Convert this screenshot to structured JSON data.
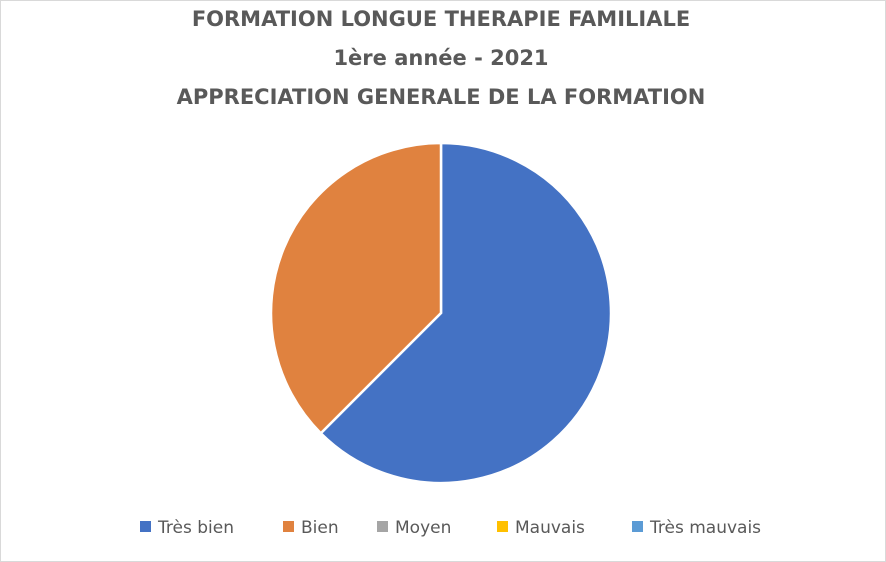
{
  "chart_data": {
    "type": "pie",
    "title": [
      "FORMATION LONGUE THERAPIE FAMILIALE",
      "1ère année - 2021",
      "APPRECIATION GENERALE DE LA FORMATION"
    ],
    "categories": [
      "Très bien",
      "Bien",
      "Moyen",
      "Mauvais",
      "Très mauvais"
    ],
    "values": [
      62.5,
      37.5,
      0,
      0,
      0
    ],
    "colors": [
      "#4472c4",
      "#e0823f",
      "#a5a5a5",
      "#ffc000",
      "#5b9bd5"
    ],
    "legend": "bottom"
  }
}
